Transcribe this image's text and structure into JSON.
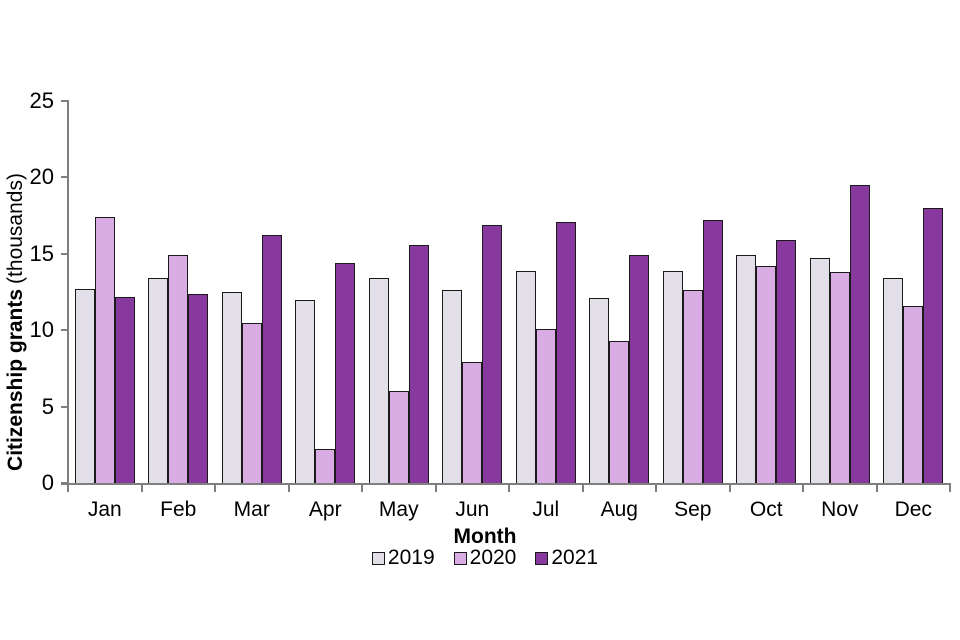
{
  "chart_data": {
    "type": "bar",
    "title": "",
    "categories": [
      "Jan",
      "Feb",
      "Mar",
      "Apr",
      "May",
      "Jun",
      "Jul",
      "Aug",
      "Sep",
      "Oct",
      "Nov",
      "Dec"
    ],
    "series": [
      {
        "name": "2019",
        "color": "#E2DFE9",
        "values": [
          12.7,
          13.4,
          12.5,
          12.0,
          13.4,
          12.6,
          13.9,
          12.1,
          13.9,
          14.9,
          14.7,
          13.4
        ]
      },
      {
        "name": "2020",
        "color": "#D9ACE4",
        "values": [
          17.4,
          14.9,
          10.5,
          2.2,
          6.0,
          7.9,
          10.1,
          9.3,
          12.6,
          14.2,
          13.8,
          11.6
        ]
      },
      {
        "name": "2021",
        "color": "#87399E",
        "values": [
          12.2,
          12.4,
          16.2,
          14.4,
          15.6,
          16.9,
          17.1,
          14.9,
          17.2,
          15.9,
          19.5,
          18.0
        ]
      }
    ],
    "xlabel": "Month",
    "ylabel_bold": "Citizenship grants",
    "ylabel_normal": "(thousands)",
    "ylim": [
      0,
      25
    ],
    "yticks": [
      0,
      5,
      10,
      15,
      20,
      25
    ],
    "grid": false,
    "legend_position": "bottom",
    "colors": {
      "axis": "#7F7F7F",
      "bar_border": "#1A1A1A",
      "background": "#FFFFFF",
      "text": "#000000"
    }
  }
}
